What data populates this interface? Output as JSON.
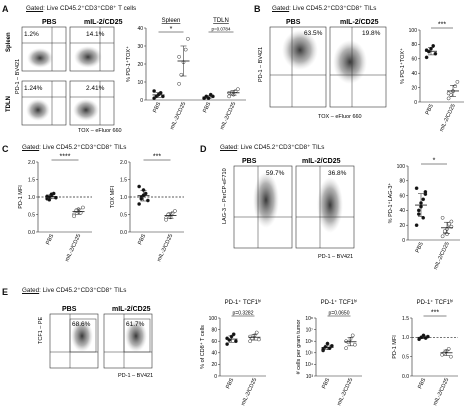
{
  "panels": {
    "A": {
      "letter": "A",
      "gate_prefix": "Gated",
      "gate_text": ": Live CD45.2⁺CD3⁺CD8⁺ T cells",
      "col_labels": [
        "PBS",
        "mIL-2/CD25"
      ],
      "row_labels": [
        "Spleen",
        "TDLN"
      ],
      "y_axis": "PD-1 – BV421",
      "x_axis": "TOX – eFluor 660",
      "quadrant_values": [
        "1.2%",
        "14.1%",
        "1.24%",
        "2.41%"
      ],
      "chart": {
        "ylabel": "% PD-1⁺TOX⁺",
        "yticks": [
          "0",
          "10",
          "20",
          "30",
          "40"
        ],
        "groups": [
          "Spleen",
          "TDLN"
        ],
        "xticks": [
          "PBS",
          "mIL-2/CD25",
          "PBS",
          "mIL-2/CD25"
        ],
        "sig": [
          "*",
          "p=0.0784"
        ]
      }
    },
    "B": {
      "letter": "B",
      "gate_prefix": "Gated",
      "gate_text": ": Live CD45.2⁺CD3⁺CD8⁺ TILs",
      "col_labels": [
        "PBS",
        "mIL-2/CD25"
      ],
      "y_axis": "PD-1 – BV421",
      "x_axis": "TOX – eFluor 660",
      "quadrant_values": [
        "63.5%",
        "19.8%"
      ],
      "chart": {
        "ylabel": "% PD-1⁺TOX⁺",
        "yticks": [
          "0",
          "20",
          "40",
          "60",
          "80",
          "100"
        ],
        "xticks": [
          "PBS",
          "mIL-2/CD25"
        ],
        "sig": "***"
      }
    },
    "C": {
      "letter": "C",
      "gate_prefix": "Gated",
      "gate_text": ": Live CD45.2⁺CD3⁺CD8⁺ TILs",
      "charts": [
        {
          "ylabel": "PD-1 MFI",
          "yticks": [
            "0.0",
            "0.5",
            "1.0",
            "1.5",
            "2.0"
          ],
          "xticks": [
            "PBS",
            "mIL-2/CD25"
          ],
          "sig": "****"
        },
        {
          "ylabel": "TOX MFI",
          "yticks": [
            "0.0",
            "0.5",
            "1.0",
            "1.5",
            "2.0"
          ],
          "xticks": [
            "PBS",
            "mIL-2/CD25"
          ],
          "sig": "***"
        }
      ]
    },
    "D": {
      "letter": "D",
      "gate_prefix": "Gated",
      "gate_text": ": Live CD45.2⁺CD3⁺CD8⁺ TILs",
      "col_labels": [
        "PBS",
        "mIL-2/CD25"
      ],
      "y_axis": "LAG-3 – PerCP-eF710",
      "x_axis": "PD-1 – BV421",
      "quadrant_values": [
        "59.7%",
        "36.8%"
      ],
      "chart": {
        "ylabel": "% PD-1⁺LAG-3⁺",
        "yticks": [
          "0",
          "20",
          "40",
          "60",
          "80",
          "100"
        ],
        "xticks": [
          "PBS",
          "mIL-2/CD25"
        ],
        "sig": "*"
      }
    },
    "E": {
      "letter": "E",
      "gate_prefix": "Gated",
      "gate_text": ": Live CD45.2⁺CD3⁺CD8⁺ TILs",
      "col_labels": [
        "PBS",
        "mIL-2/CD25"
      ],
      "y_axis": "TCF1 – PE",
      "x_axis": "PD-1 – BV421",
      "quadrant_values": [
        "68.6%",
        "61.7%"
      ],
      "charts": [
        {
          "title": "PD-1⁺ TCF1ʰⁱ",
          "ylabel": "% of CD8⁺ T cells",
          "yticks": [
            "0",
            "20",
            "40",
            "60",
            "80",
            "100"
          ],
          "xticks": [
            "PBS",
            "mIL-2/CD25"
          ],
          "sig": "p=0.3282"
        },
        {
          "title": "PD-1⁺ TCF1ʰⁱ",
          "ylabel": "# cells per gram tumor",
          "yticks": [
            "10³",
            "10⁴",
            "10⁵",
            "10⁶",
            "10⁷",
            "10⁸"
          ],
          "xticks": [
            "PBS",
            "mIL-2/CD25"
          ],
          "sig": "p=0.0650"
        },
        {
          "title": "PD-1⁺ TCF1ʰⁱ",
          "ylabel": "PD-1 MFI",
          "yticks": [
            "0.0",
            "0.5",
            "1.0",
            "1.5"
          ],
          "xticks": [
            "PBS",
            "mIL-2/CD25"
          ],
          "sig": "***"
        }
      ]
    }
  },
  "chart_data": [
    {
      "type": "scatter",
      "panel": "A",
      "ylim": [
        0,
        40
      ],
      "groups": [
        "Spleen",
        "TDLN"
      ],
      "categories": [
        "PBS",
        "mIL-2/CD25",
        "PBS",
        "mIL-2/CD25"
      ],
      "series": [
        {
          "values": [
            [
              1,
              2,
              3,
              4,
              2,
              5
            ],
            [
              9,
              14,
              21,
              28,
              34,
              24
            ],
            [
              1,
              2,
              1,
              3,
              2,
              1
            ],
            [
              2,
              4,
              3,
              5,
              6,
              4
            ]
          ]
        }
      ]
    },
    {
      "type": "scatter",
      "panel": "B",
      "ylim": [
        0,
        100
      ],
      "categories": [
        "PBS",
        "mIL-2/CD25"
      ],
      "series": [
        {
          "values": [
            [
              62,
              70,
              74,
              78,
              67,
              72
            ],
            [
              5,
              10,
              15,
              22,
              28,
              12
            ]
          ]
        }
      ]
    },
    {
      "type": "scatter",
      "panel": "C",
      "ylabel": "PD-1 MFI",
      "ylim": [
        0,
        2
      ],
      "categories": [
        "PBS",
        "mIL-2/CD25"
      ],
      "series": [
        {
          "values": [
            [
              0.95,
              1.0,
              1.05,
              1.1,
              0.98,
              1.02,
              0.92,
              1.08
            ],
            [
              0.5,
              0.6,
              0.65,
              0.55,
              0.7,
              0.45,
              0.62,
              0.58
            ]
          ]
        }
      ]
    },
    {
      "type": "scatter",
      "panel": "C",
      "ylabel": "TOX MFI",
      "ylim": [
        0,
        2
      ],
      "categories": [
        "PBS",
        "mIL-2/CD25"
      ],
      "series": [
        {
          "values": [
            [
              0.8,
              1.0,
              1.2,
              1.1,
              0.9,
              1.3,
              0.95,
              1.05
            ],
            [
              0.4,
              0.5,
              0.45,
              0.55,
              0.6,
              0.35,
              0.5,
              0.42
            ]
          ]
        }
      ]
    },
    {
      "type": "scatter",
      "panel": "D",
      "ylim": [
        0,
        100
      ],
      "categories": [
        "PBS",
        "mIL-2/CD25"
      ],
      "series": [
        {
          "values": [
            [
              20,
              35,
              45,
              55,
              62,
              70,
              40,
              50,
              30,
              65
            ],
            [
              5,
              10,
              15,
              20,
              25,
              30,
              12,
              8,
              22,
              18
            ]
          ]
        }
      ]
    },
    {
      "type": "scatter",
      "panel": "E",
      "ylabel": "% of CD8⁺ T cells",
      "ylim": [
        0,
        100
      ],
      "categories": [
        "PBS",
        "mIL-2/CD25"
      ],
      "series": [
        {
          "values": [
            [
              55,
              62,
              68,
              72,
              60,
              65
            ],
            [
              60,
              65,
              70,
              75,
              63,
              68
            ]
          ]
        }
      ]
    },
    {
      "type": "scatter",
      "panel": "E",
      "ylabel": "# cells per gram tumor",
      "ylim": [
        3,
        8
      ],
      "log": true,
      "categories": [
        "PBS",
        "mIL-2/CD25"
      ],
      "series": [
        {
          "values": [
            [
              5.2,
              5.5,
              5.8,
              5.4,
              5.6,
              5.3
            ],
            [
              5.4,
              5.9,
              6.2,
              6.5,
              5.7,
              6.0
            ]
          ]
        }
      ]
    },
    {
      "type": "scatter",
      "panel": "E",
      "ylabel": "PD-1 MFI",
      "ylim": [
        0,
        1.5
      ],
      "categories": [
        "PBS",
        "mIL-2/CD25"
      ],
      "series": [
        {
          "values": [
            [
              0.95,
              1.0,
              1.05,
              0.98,
              1.02
            ],
            [
              0.55,
              0.6,
              0.65,
              0.7,
              0.5
            ]
          ]
        }
      ]
    }
  ]
}
